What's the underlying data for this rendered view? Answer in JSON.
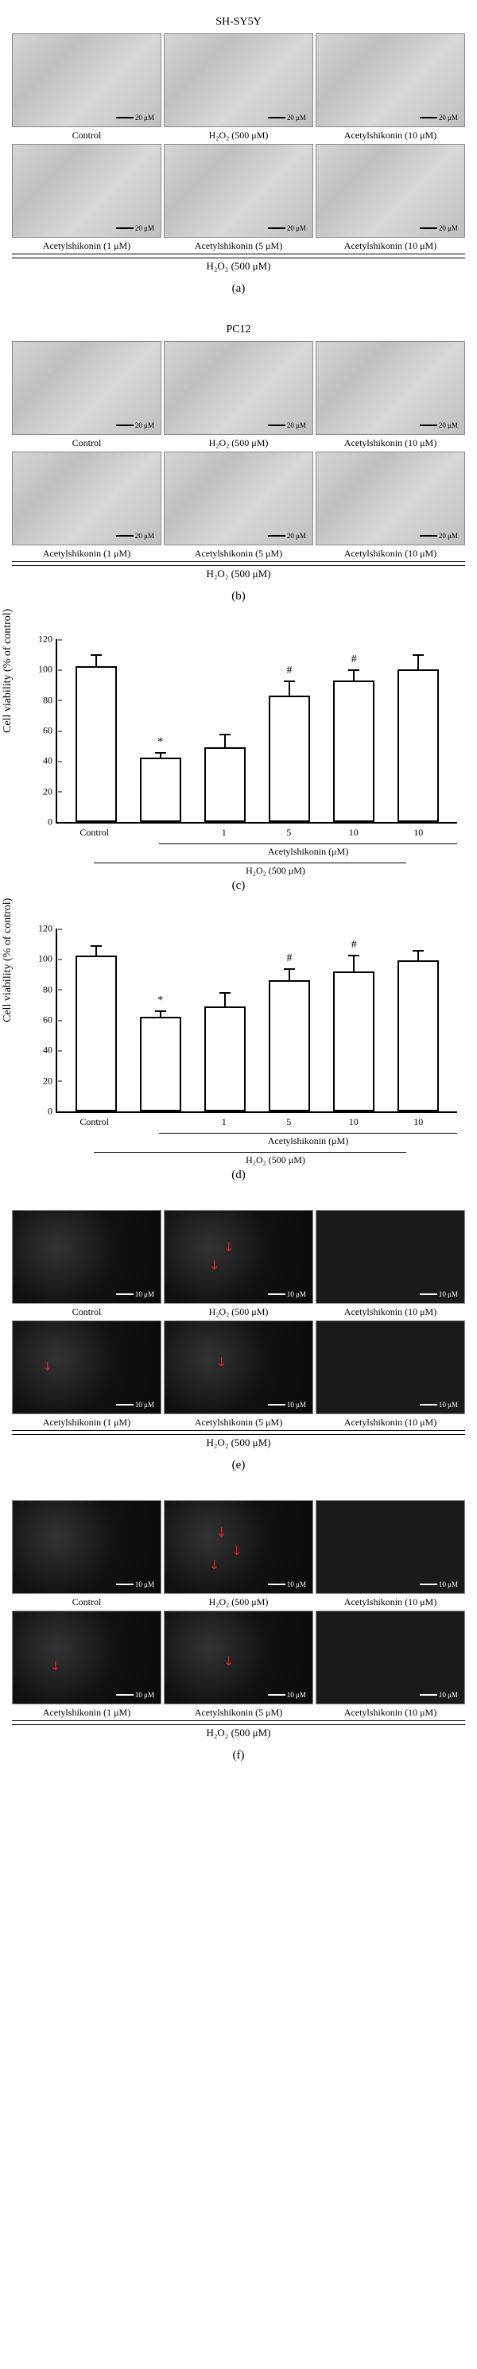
{
  "panels": {
    "a": {
      "title": "SH-SY5Y",
      "scale": "20 μM",
      "sub": "(a)"
    },
    "b": {
      "title": "PC12",
      "scale": "20 μM",
      "sub": "(b)"
    },
    "c": {
      "sub": "(c)",
      "ylabel": "Cell viability (% of control)",
      "ymax": 120,
      "ystep": 20,
      "bars": [
        {
          "v": 100,
          "e": 9
        },
        {
          "v": 40,
          "e": 5,
          "s": "*"
        },
        {
          "v": 47,
          "e": 10
        },
        {
          "v": 81,
          "e": 11,
          "s": "#"
        },
        {
          "v": 91,
          "e": 8,
          "s": "#"
        },
        {
          "v": 98,
          "e": 11
        }
      ]
    },
    "d": {
      "sub": "(d)",
      "ylabel": "Cell viability (% of control)",
      "ymax": 120,
      "ystep": 20,
      "bars": [
        {
          "v": 100,
          "e": 8
        },
        {
          "v": 60,
          "e": 5,
          "s": "*"
        },
        {
          "v": 67,
          "e": 10
        },
        {
          "v": 84,
          "e": 9,
          "s": "#"
        },
        {
          "v": 90,
          "e": 12,
          "s": "#"
        },
        {
          "v": 97,
          "e": 8
        }
      ]
    },
    "e": {
      "scale": "10 μM",
      "sub": "(e)"
    },
    "f": {
      "scale": "10 μM",
      "sub": "(f)"
    }
  },
  "microLabels": {
    "top": [
      "Control",
      "H₂O₂ (500 μM)",
      "Acetylshikonin (10 μM)"
    ],
    "bottom": [
      "Acetylshikonin (1 μM)",
      "Acetylshikonin (5 μM)",
      "Acetylshikonin (10 μM)"
    ]
  },
  "conditionLabel": "H₂O₂ (500 μM)",
  "chartX": [
    "Control",
    "",
    "1",
    "5",
    "10",
    "10"
  ],
  "acetylLabel": "Acetylshikonin (μM)",
  "colors": {
    "bar_border": "#000",
    "bar_fill": "#fff",
    "axis": "#000",
    "arrow": "#d92020"
  }
}
